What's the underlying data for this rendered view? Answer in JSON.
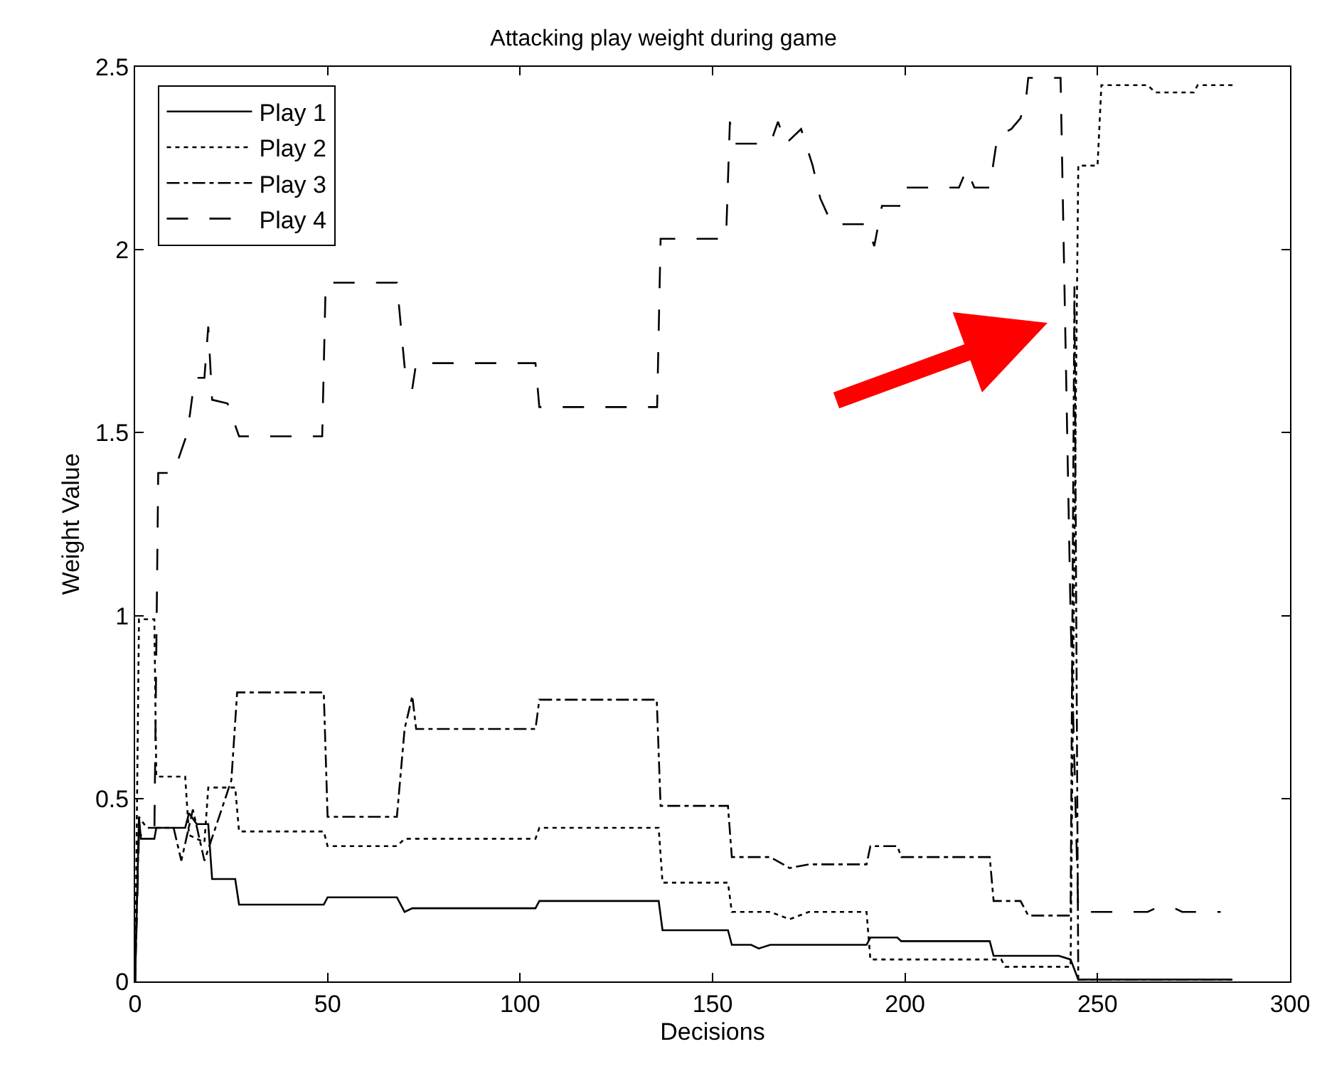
{
  "chart_data": {
    "type": "line",
    "title": "Attacking play weight during game",
    "xlabel": "Decisions",
    "ylabel": "Weight Value",
    "xlim": [
      0,
      300
    ],
    "xticks": [
      0,
      50,
      100,
      150,
      200,
      250,
      300
    ],
    "ylim": [
      0,
      2.5
    ],
    "yticks": [
      0,
      0.5,
      1,
      1.5,
      2,
      2.5
    ],
    "legend": "top left",
    "marker": "none",
    "series": [
      {
        "name": "Play 1",
        "color": "#000000",
        "line_style": "solid",
        "x": [
          0,
          1,
          1.5,
          5,
          5.5,
          13,
          14,
          16,
          19,
          20,
          26,
          27,
          49,
          50,
          68,
          70,
          72,
          104,
          105,
          136,
          137,
          154,
          155,
          160,
          162,
          165,
          167,
          190,
          191,
          198,
          199,
          222,
          223,
          240,
          243,
          245,
          285
        ],
        "values": [
          0,
          0.45,
          0.39,
          0.39,
          0.42,
          0.42,
          0.46,
          0.43,
          0.43,
          0.28,
          0.28,
          0.21,
          0.21,
          0.23,
          0.23,
          0.19,
          0.2,
          0.2,
          0.22,
          0.22,
          0.14,
          0.14,
          0.1,
          0.1,
          0.09,
          0.1,
          0.1,
          0.1,
          0.12,
          0.12,
          0.11,
          0.11,
          0.07,
          0.07,
          0.06,
          0.005,
          0.005
        ]
      },
      {
        "name": "Play 2",
        "color": "#000000",
        "line_style": "dotted",
        "x": [
          0,
          1,
          5,
          5.5,
          13,
          14,
          18,
          19,
          26,
          27,
          49,
          50,
          68,
          70,
          104,
          105,
          136,
          137,
          154,
          155,
          165,
          170,
          175,
          190,
          191,
          225,
          226,
          243,
          244,
          245,
          250,
          251,
          263,
          265,
          275,
          276,
          286
        ],
        "values": [
          0,
          0.99,
          0.99,
          0.56,
          0.56,
          0.4,
          0.38,
          0.53,
          0.53,
          0.41,
          0.41,
          0.37,
          0.37,
          0.39,
          0.39,
          0.42,
          0.42,
          0.27,
          0.27,
          0.19,
          0.19,
          0.17,
          0.19,
          0.19,
          0.06,
          0.06,
          0.04,
          0.04,
          1.2,
          2.23,
          2.23,
          2.45,
          2.45,
          2.43,
          2.43,
          2.45,
          2.45
        ]
      },
      {
        "name": "Play 3",
        "color": "#000000",
        "line_style": "dashed-dot",
        "x": [
          0,
          1,
          3,
          10,
          12,
          15,
          18,
          25,
          26.5,
          49,
          50,
          68,
          70,
          72,
          73,
          104,
          105,
          135.5,
          136.5,
          154,
          155,
          165,
          170,
          175,
          190,
          191,
          198,
          199,
          222,
          223,
          230,
          232,
          243,
          244,
          245,
          285
        ],
        "values": [
          0,
          0.45,
          0.42,
          0.42,
          0.33,
          0.47,
          0.33,
          0.55,
          0.79,
          0.79,
          0.45,
          0.45,
          0.69,
          0.78,
          0.69,
          0.69,
          0.77,
          0.77,
          0.48,
          0.48,
          0.34,
          0.34,
          0.31,
          0.32,
          0.32,
          0.37,
          0.37,
          0.34,
          0.34,
          0.22,
          0.22,
          0.18,
          0.18,
          1.9,
          0.005,
          0.005
        ]
      },
      {
        "name": "Play 4",
        "color": "#000000",
        "line_style": "long-dashed",
        "x": [
          0,
          1,
          5,
          6,
          10,
          13.6,
          15.5,
          18,
          19,
          20,
          24,
          27,
          48.6,
          49.5,
          68,
          70,
          72,
          73,
          104,
          105,
          135.6,
          136.5,
          153.5,
          154.5,
          155.5,
          165,
          167,
          169,
          173,
          176,
          178,
          181,
          190,
          192,
          194,
          199,
          200,
          214,
          216,
          218,
          222,
          224,
          227.6,
          230,
          231.5,
          232,
          240.4,
          243,
          245,
          263,
          265,
          270,
          272,
          282
        ],
        "values": [
          0,
          0.4,
          0.4,
          1.39,
          1.39,
          1.5,
          1.65,
          1.65,
          1.79,
          1.59,
          1.58,
          1.49,
          1.49,
          1.91,
          1.91,
          1.68,
          1.62,
          1.69,
          1.69,
          1.57,
          1.57,
          2.03,
          2.03,
          2.35,
          2.29,
          2.29,
          2.35,
          2.29,
          2.33,
          2.23,
          2.14,
          2.07,
          2.07,
          2.01,
          2.12,
          2.12,
          2.17,
          2.17,
          2.22,
          2.17,
          2.17,
          2.31,
          2.33,
          2.36,
          2.42,
          2.47,
          2.47,
          1.0,
          0.19,
          0.19,
          0.2,
          0.2,
          0.19,
          0.19
        ]
      }
    ]
  }
}
